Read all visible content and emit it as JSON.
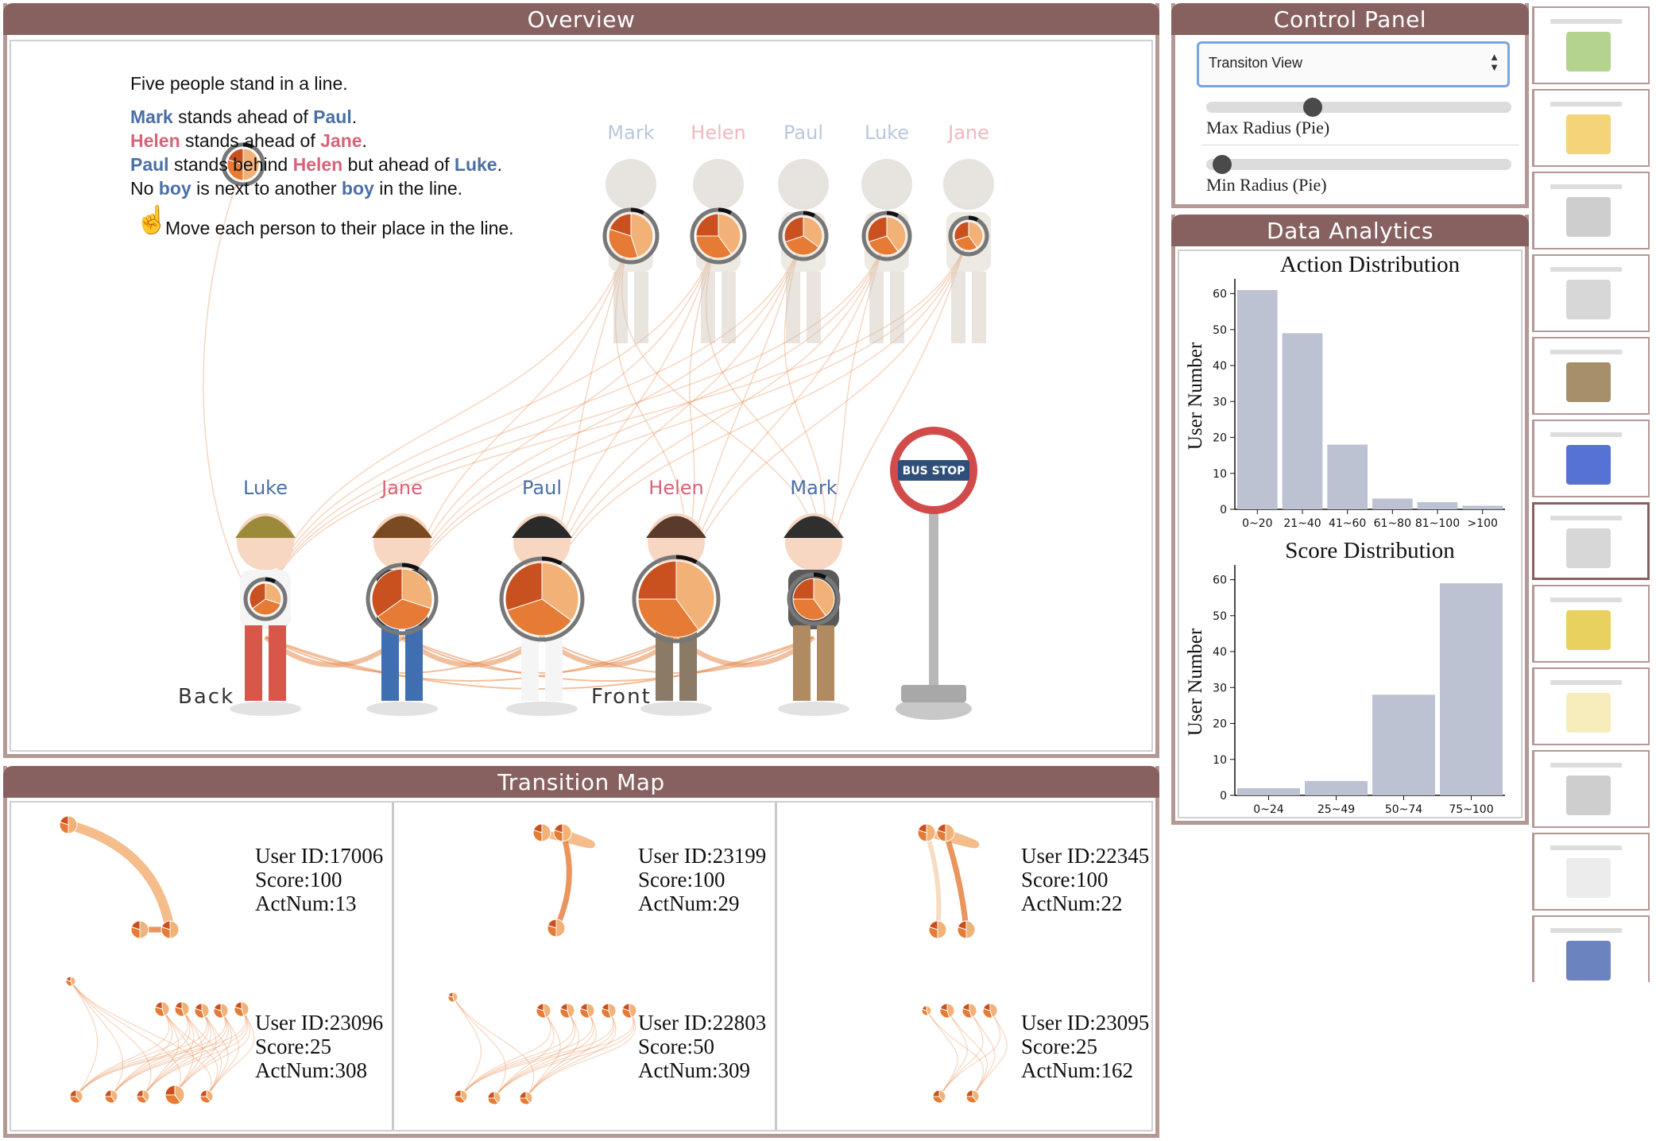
{
  "overview": {
    "title": "Overview",
    "question": {
      "line1": "Five people stand in a line.",
      "clue1": [
        "Mark",
        " stands ahead of ",
        "Paul",
        "."
      ],
      "clue2": [
        "Helen",
        " stands ahead of ",
        "Jane",
        "."
      ],
      "clue3": [
        "Paul",
        " stands behind ",
        "Helen",
        " but ahead of ",
        "Luke",
        "."
      ],
      "clue4": [
        "No ",
        "boy",
        " is next to another ",
        "boy",
        " in the line."
      ],
      "instruction": "Move each person to their place in the line."
    },
    "top_names": [
      "Mark",
      "Helen",
      "Paul",
      "Luke",
      "Jane"
    ],
    "line_names": [
      "Luke",
      "Jane",
      "Paul",
      "Helen",
      "Mark"
    ],
    "back_label": "Back",
    "front_label": "Front",
    "bus_stop": "BUS STOP",
    "colors": {
      "boy": "#4a6fa5",
      "girl": "#d6637a",
      "pie_dark": "#c9511f",
      "pie_mid": "#e57b35",
      "pie_light": "#f2b277",
      "link": "#e88a4e"
    }
  },
  "control_panel": {
    "title": "Control Panel",
    "view_select": "Transiton View",
    "max_radius_label": "Max Radius (Pie)",
    "min_radius_label": "Min Radius (Pie)",
    "max_radius_value": 0.35,
    "min_radius_value": 0.03
  },
  "data_analytics": {
    "title": "Data Analytics"
  },
  "chart_data": [
    {
      "type": "bar",
      "title": "Action Distribution",
      "ylabel": "User Number",
      "xlabel": "",
      "categories": [
        "0~20",
        "21~40",
        "41~60",
        "61~80",
        "81~100",
        ">100"
      ],
      "values": [
        61,
        49,
        18,
        3,
        2,
        1
      ],
      "ylim": [
        0,
        63
      ],
      "yticks": [
        0,
        10,
        20,
        30,
        40,
        50,
        60
      ],
      "bar_color": "#bcc2d2"
    },
    {
      "type": "bar",
      "title": "Score Distribution",
      "ylabel": "User Number",
      "xlabel": "",
      "categories": [
        "0~24",
        "25~49",
        "50~74",
        "75~100"
      ],
      "values": [
        2,
        4,
        28,
        59
      ],
      "ylim": [
        0,
        63
      ],
      "yticks": [
        0,
        10,
        20,
        30,
        40,
        50,
        60
      ],
      "bar_color": "#bcc2d2"
    }
  ],
  "transition_map": {
    "title": "Transition Map",
    "users": [
      {
        "id_label": "User ID:17006",
        "score_label": "Score:100",
        "act_label": "ActNum:13"
      },
      {
        "id_label": "User ID:23199",
        "score_label": "Score:100",
        "act_label": "ActNum:29"
      },
      {
        "id_label": "User ID:22345",
        "score_label": "Score:100",
        "act_label": "ActNum:22"
      },
      {
        "id_label": "User ID:23096",
        "score_label": "Score:25",
        "act_label": "ActNum:308"
      },
      {
        "id_label": "User ID:22803",
        "score_label": "Score:50",
        "act_label": "ActNum:309"
      },
      {
        "id_label": "User ID:23095",
        "score_label": "Score:25",
        "act_label": "ActNum:162"
      }
    ]
  },
  "thumbnails": {
    "count": 12,
    "selected_index": 6
  }
}
